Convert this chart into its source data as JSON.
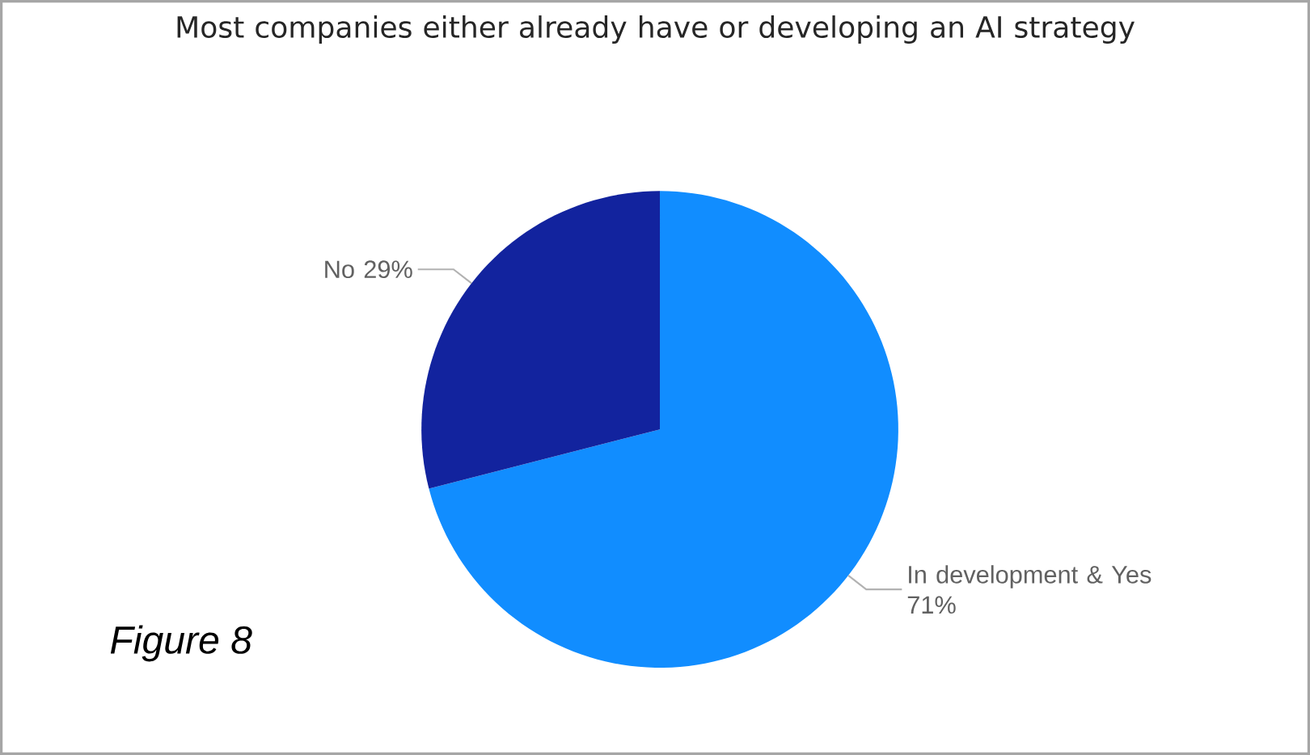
{
  "chart_data": {
    "type": "pie",
    "title": "Most companies either already have or developing an AI strategy",
    "categories": [
      "In development & Yes",
      "No"
    ],
    "values": [
      71,
      29
    ],
    "colors": [
      "#118dff",
      "#12239e"
    ],
    "value_labels": [
      "71%",
      "29%"
    ],
    "annotations": [
      "Figure 8"
    ]
  }
}
